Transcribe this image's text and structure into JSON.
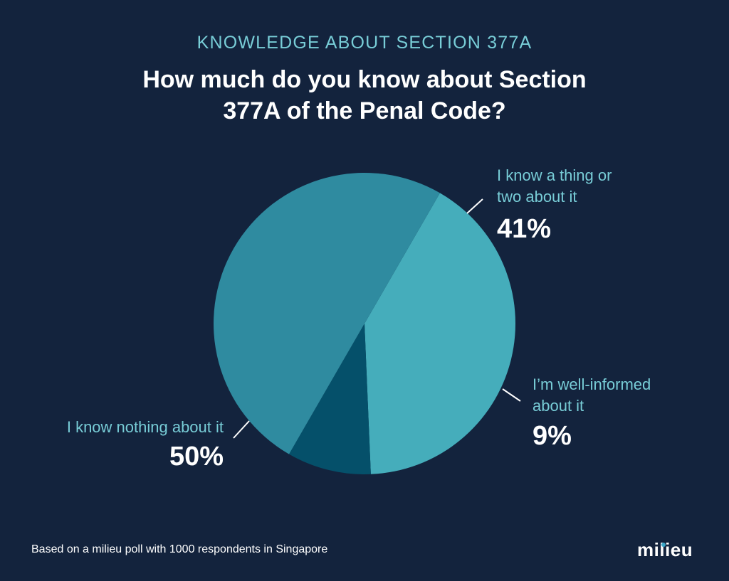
{
  "header": {
    "kicker": "KNOWLEDGE ABOUT SECTION 377A",
    "title": "How much do you know about Section 377A of the Penal Code?"
  },
  "chart_data": {
    "type": "pie",
    "title": "How much do you know about Section 377A of the Penal Code?",
    "slices": [
      {
        "label": "I know a thing or two about it",
        "value": 41,
        "display": "41%",
        "color": "#45adbb"
      },
      {
        "label": "I’m well-informed about it",
        "value": 9,
        "display": "9%",
        "color": "#05506a"
      },
      {
        "label": "I know nothing about it",
        "value": 50,
        "display": "50%",
        "color": "#2f8ba0"
      }
    ]
  },
  "labels": {
    "thing_line1": "I know a thing or",
    "thing_line2": "two about it",
    "well_line1": "I’m well-informed",
    "well_line2": "about it",
    "nothing_line1": "I know nothing about it"
  },
  "footer": {
    "note": "Based on a milieu poll with 1000 respondents in Singapore",
    "brand": "milieu"
  },
  "colors": {
    "background": "#13233d",
    "label_text": "#78cdd7",
    "leader_line": "#ffffff"
  }
}
